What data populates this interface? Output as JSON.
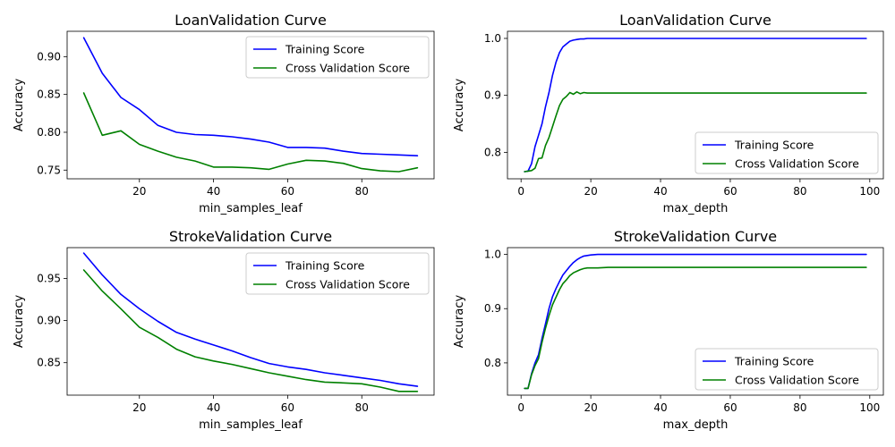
{
  "figure": {
    "background": "#ffffff"
  },
  "chart_data": [
    {
      "type": "line",
      "title": "LoanValidation Curve",
      "xlabel": "min_samples_leaf",
      "ylabel": "Accuracy",
      "xlim": [
        0.5,
        99.5
      ],
      "ylim": [
        0.7385,
        0.9335
      ],
      "xticks": [
        20,
        40,
        60,
        80
      ],
      "yticks": [
        0.75,
        0.8,
        0.85,
        0.9
      ],
      "ytick_labels": [
        "0.75",
        "0.80",
        "0.85",
        "0.90"
      ],
      "legend": "upper right",
      "x": [
        5,
        10,
        15,
        20,
        25,
        30,
        35,
        40,
        45,
        50,
        55,
        60,
        65,
        70,
        75,
        80,
        85,
        90,
        95
      ],
      "series": [
        {
          "name": "Training Score",
          "color": "#0000ff",
          "values": [
            0.925,
            0.878,
            0.846,
            0.83,
            0.809,
            0.8,
            0.797,
            0.796,
            0.794,
            0.791,
            0.787,
            0.78,
            0.78,
            0.779,
            0.775,
            0.772,
            0.771,
            0.77,
            0.769
          ]
        },
        {
          "name": "Cross Validation Score",
          "color": "#008000",
          "values": [
            0.852,
            0.796,
            0.802,
            0.784,
            0.775,
            0.767,
            0.762,
            0.754,
            0.754,
            0.753,
            0.751,
            0.758,
            0.763,
            0.762,
            0.759,
            0.752,
            0.749,
            0.748,
            0.753
          ]
        }
      ]
    },
    {
      "type": "line",
      "title": "LoanValidation Curve",
      "xlabel": "max_depth",
      "ylabel": "Accuracy",
      "xlim": [
        -3.9,
        103.9
      ],
      "ylim": [
        0.7535,
        1.0125
      ],
      "xticks": [
        0,
        20,
        40,
        60,
        80,
        100
      ],
      "yticks": [
        0.8,
        0.9,
        1.0
      ],
      "ytick_labels": [
        "0.8",
        "0.9",
        "1.0"
      ],
      "legend": "lower right",
      "x": [
        1,
        2,
        3,
        4,
        5,
        6,
        7,
        8,
        9,
        10,
        11,
        12,
        13,
        14,
        15,
        16,
        17,
        18,
        19,
        20,
        25,
        30,
        40,
        50,
        60,
        70,
        80,
        90,
        99
      ],
      "series": [
        {
          "name": "Training Score",
          "color": "#0000ff",
          "values": [
            0.766,
            0.767,
            0.78,
            0.81,
            0.83,
            0.85,
            0.88,
            0.905,
            0.935,
            0.958,
            0.975,
            0.985,
            0.99,
            0.995,
            0.997,
            0.998,
            0.999,
            0.999,
            1.0,
            1.0,
            1.0,
            1.0,
            1.0,
            1.0,
            1.0,
            1.0,
            1.0,
            1.0,
            1.0
          ]
        },
        {
          "name": "Cross Validation Score",
          "color": "#008000",
          "values": [
            0.766,
            0.767,
            0.768,
            0.772,
            0.789,
            0.79,
            0.812,
            0.826,
            0.845,
            0.864,
            0.882,
            0.893,
            0.898,
            0.905,
            0.902,
            0.906,
            0.903,
            0.905,
            0.904,
            0.904,
            0.904,
            0.904,
            0.904,
            0.904,
            0.904,
            0.904,
            0.904,
            0.904,
            0.904
          ]
        }
      ]
    },
    {
      "type": "line",
      "title": "StrokeValidation Curve",
      "xlabel": "min_samples_leaf",
      "ylabel": "Accuracy",
      "xlim": [
        0.5,
        99.5
      ],
      "ylim": [
        0.8115,
        0.9865
      ],
      "xticks": [
        20,
        40,
        60,
        80
      ],
      "yticks": [
        0.85,
        0.9,
        0.95
      ],
      "ytick_labels": [
        "0.85",
        "0.90",
        "0.95"
      ],
      "legend": "upper right",
      "x": [
        5,
        10,
        15,
        20,
        25,
        30,
        35,
        40,
        45,
        50,
        55,
        60,
        65,
        70,
        75,
        80,
        85,
        90,
        95
      ],
      "series": [
        {
          "name": "Training Score",
          "color": "#0000ff",
          "values": [
            0.98,
            0.954,
            0.931,
            0.914,
            0.899,
            0.886,
            0.878,
            0.871,
            0.864,
            0.856,
            0.849,
            0.845,
            0.842,
            0.838,
            0.835,
            0.832,
            0.829,
            0.825,
            0.822
          ]
        },
        {
          "name": "Cross Validation Score",
          "color": "#008000",
          "values": [
            0.96,
            0.935,
            0.914,
            0.892,
            0.88,
            0.866,
            0.857,
            0.852,
            0.848,
            0.843,
            0.838,
            0.834,
            0.83,
            0.827,
            0.826,
            0.825,
            0.821,
            0.816,
            0.816
          ]
        }
      ]
    },
    {
      "type": "line",
      "title": "StrokeValidation Curve",
      "xlabel": "max_depth",
      "ylabel": "Accuracy",
      "xlim": [
        -3.9,
        103.9
      ],
      "ylim": [
        0.7405,
        1.0125
      ],
      "xticks": [
        0,
        20,
        40,
        60,
        80,
        100
      ],
      "yticks": [
        0.8,
        0.9,
        1.0
      ],
      "ytick_labels": [
        "0.8",
        "0.9",
        "1.0"
      ],
      "legend": "lower right",
      "x": [
        1,
        2,
        3,
        4,
        5,
        6,
        7,
        8,
        9,
        10,
        11,
        12,
        13,
        14,
        15,
        16,
        17,
        18,
        19,
        20,
        22,
        25,
        30,
        40,
        50,
        60,
        70,
        80,
        90,
        99
      ],
      "series": [
        {
          "name": "Training Score",
          "color": "#0000ff",
          "values": [
            0.753,
            0.753,
            0.78,
            0.8,
            0.815,
            0.845,
            0.872,
            0.9,
            0.922,
            0.937,
            0.95,
            0.962,
            0.97,
            0.978,
            0.985,
            0.99,
            0.994,
            0.997,
            0.998,
            0.999,
            1.0,
            1.0,
            1.0,
            1.0,
            1.0,
            1.0,
            1.0,
            1.0,
            1.0,
            1.0
          ]
        },
        {
          "name": "Cross Validation Score",
          "color": "#008000",
          "values": [
            0.753,
            0.753,
            0.778,
            0.795,
            0.808,
            0.838,
            0.864,
            0.887,
            0.907,
            0.921,
            0.935,
            0.946,
            0.953,
            0.961,
            0.966,
            0.969,
            0.972,
            0.974,
            0.975,
            0.975,
            0.975,
            0.976,
            0.976,
            0.976,
            0.976,
            0.976,
            0.976,
            0.976,
            0.976,
            0.976
          ]
        }
      ]
    }
  ]
}
